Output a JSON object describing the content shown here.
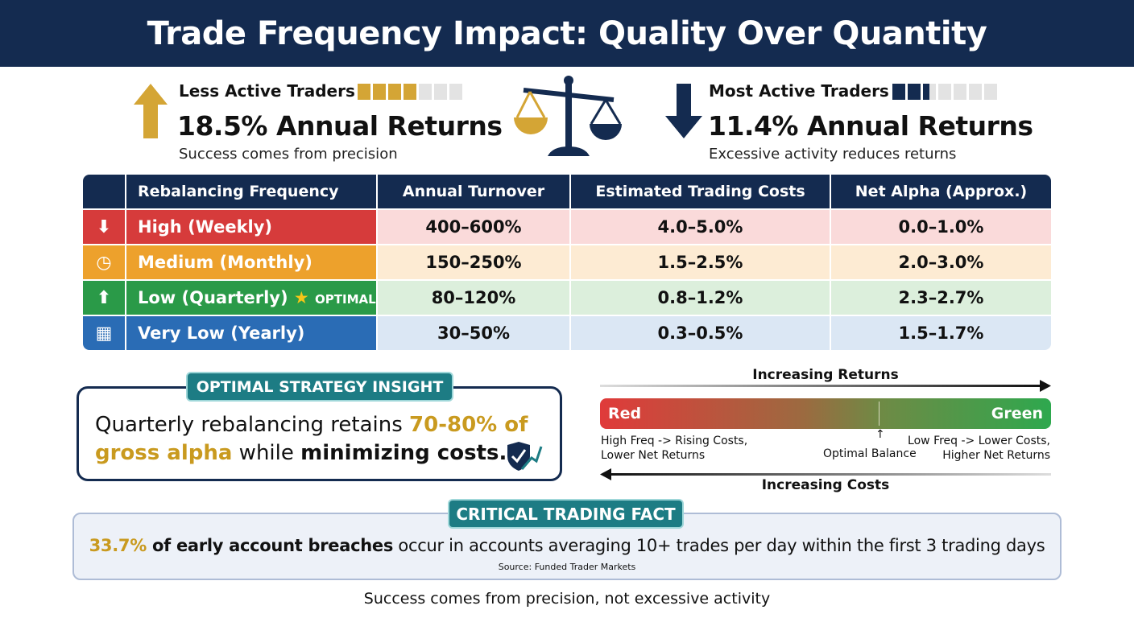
{
  "title": "Trade Frequency Impact: Quality Over Quantity",
  "left_stat": {
    "label": "Less Active Traders",
    "value": "18.5% Annual Returns",
    "subtitle": "Success comes from precision",
    "activity_level": 4,
    "activity_max": 7,
    "color": "#d4a535",
    "icon": "arrow-up-icon"
  },
  "right_stat": {
    "label": "Most Active Traders",
    "value": "11.4% Annual Returns",
    "subtitle": "Excessive activity reduces returns",
    "activity_level": 2.5,
    "activity_max": 7,
    "color": "#142b50",
    "icon": "arrow-down-icon"
  },
  "center_icon": "balance-scale-icon",
  "table": {
    "headers": [
      "Rebalancing Frequency",
      "Annual Turnover",
      "Estimated Trading Costs",
      "Net Alpha (Approx.)"
    ],
    "rows": [
      {
        "label": "High (Weekly)",
        "turnover": "400–600%",
        "costs": "4.0–5.0%",
        "alpha": "0.0–1.0%",
        "icon": "arrow-down-icon",
        "color": "#d63b3b",
        "bg": "#fadada"
      },
      {
        "label": "Medium (Monthly)",
        "turnover": "150–250%",
        "costs": "1.5–2.5%",
        "alpha": "2.0–3.0%",
        "icon": "clock-icon",
        "color": "#eda12c",
        "bg": "#fdebd3"
      },
      {
        "label": "Low (Quarterly)",
        "badge": "OPTIMAL",
        "turnover": "80–120%",
        "costs": "0.8–1.2%",
        "alpha": "2.3–2.7%",
        "icon": "arrow-up-icon",
        "color": "#2a9a48",
        "bg": "#dcefdc"
      },
      {
        "label": "Very Low (Yearly)",
        "turnover": "30–50%",
        "costs": "0.3–0.5%",
        "alpha": "1.5–1.7%",
        "icon": "calendar-icon",
        "color": "#2a6cb5",
        "bg": "#dbe7f4"
      }
    ]
  },
  "insight": {
    "title": "OPTIMAL STRATEGY INSIGHT",
    "text_a": "Quarterly rebalancing retains ",
    "highlight": "70-80% of gross alpha",
    "text_b": " while ",
    "bold": "minimizing costs."
  },
  "spectrum": {
    "top_label": "Increasing Returns",
    "bottom_label": "Increasing Costs",
    "left": "Red",
    "right": "Green",
    "left_note": [
      "High Freq -> Rising Costs,",
      "Lower Net Returns"
    ],
    "right_note": [
      "Low Freq -> Lower Costs,",
      "Higher Net Returns"
    ],
    "marker": "Optimal Balance"
  },
  "fact": {
    "title": "CRITICAL TRADING FACT",
    "highlight": "33.7%",
    "bold": " of early account breaches",
    "text": " occur in accounts averaging 10+ trades per day within the first 3 trading days",
    "source": "Source: Funded Trader Markets"
  },
  "footer": "Success comes from precision, not excessive activity"
}
